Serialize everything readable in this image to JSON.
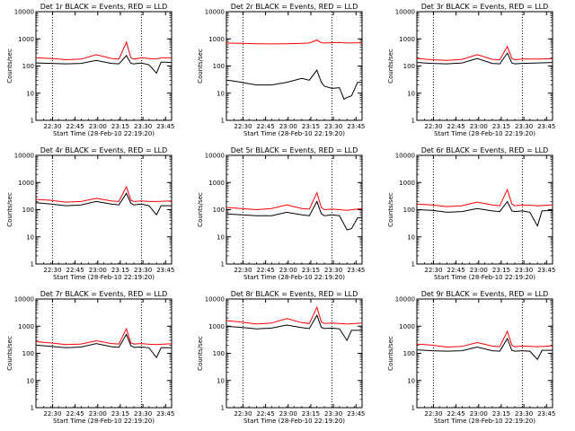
{
  "chart_data": {
    "type": "line",
    "x_tick_labels": [
      "22:30",
      "22:45",
      "23:00",
      "23:15",
      "23:30",
      "23:45"
    ],
    "y_tick_labels": [
      "1",
      "10",
      "100",
      "1000",
      "10000"
    ],
    "ylabel": "Counts/sec",
    "xlabel": "Start Time (28-Feb-10 22:19:20)",
    "y_scale": "log",
    "ylim": [
      1,
      10000
    ],
    "xlim_minutes_after_start": [
      0,
      90
    ],
    "series_colors": {
      "events": "#000000",
      "lld": "#ff0000"
    },
    "panels": [
      {
        "title": "Det 1r BLACK = Events, RED = LLD",
        "events": {
          "x": [
            0,
            10,
            20,
            30,
            40,
            50,
            55,
            60,
            63,
            65,
            70,
            75,
            80,
            83,
            90
          ],
          "y": [
            130,
            125,
            120,
            125,
            160,
            125,
            120,
            240,
            125,
            120,
            130,
            110,
            55,
            140,
            135
          ]
        },
        "lld": {
          "x": [
            0,
            10,
            20,
            30,
            40,
            50,
            55,
            60,
            63,
            65,
            70,
            75,
            80,
            83,
            90
          ],
          "y": [
            200,
            190,
            170,
            180,
            260,
            190,
            180,
            750,
            200,
            180,
            200,
            190,
            180,
            200,
            200
          ]
        }
      },
      {
        "title": "Det 2r BLACK = Events, RED = LLD",
        "events": {
          "x": [
            0,
            5,
            10,
            20,
            30,
            40,
            50,
            55,
            60,
            63,
            65,
            70,
            75,
            78,
            80,
            83,
            87,
            90
          ],
          "y": [
            30,
            28,
            25,
            20,
            20,
            25,
            35,
            30,
            70,
            25,
            18,
            15,
            16,
            6,
            7,
            8,
            25,
            25
          ]
        },
        "lld": {
          "x": [
            0,
            10,
            20,
            30,
            40,
            50,
            55,
            60,
            63,
            65,
            70,
            75,
            80,
            90
          ],
          "y": [
            700,
            680,
            660,
            650,
            660,
            680,
            700,
            900,
            720,
            700,
            720,
            740,
            700,
            720
          ]
        }
      },
      {
        "title": "Det 3r BLACK = Events, RED = LLD",
        "events": {
          "x": [
            0,
            10,
            20,
            30,
            40,
            50,
            55,
            60,
            63,
            65,
            70,
            80,
            90
          ],
          "y": [
            135,
            125,
            120,
            130,
            190,
            125,
            120,
            300,
            130,
            120,
            125,
            130,
            135
          ]
        },
        "lld": {
          "x": [
            0,
            10,
            20,
            30,
            40,
            50,
            55,
            60,
            63,
            65,
            70,
            80,
            90
          ],
          "y": [
            190,
            170,
            160,
            175,
            260,
            175,
            170,
            520,
            190,
            170,
            180,
            180,
            185
          ]
        }
      },
      {
        "title": "Det 4r BLACK = Events, RED = LLD",
        "events": {
          "x": [
            0,
            10,
            20,
            30,
            40,
            50,
            55,
            60,
            63,
            65,
            70,
            75,
            80,
            83,
            90
          ],
          "y": [
            180,
            160,
            140,
            150,
            200,
            160,
            150,
            400,
            170,
            150,
            160,
            140,
            65,
            140,
            140
          ]
        },
        "lld": {
          "x": [
            0,
            10,
            20,
            30,
            40,
            50,
            55,
            60,
            63,
            65,
            70,
            75,
            80,
            90
          ],
          "y": [
            240,
            220,
            190,
            200,
            260,
            210,
            200,
            700,
            220,
            200,
            210,
            200,
            200,
            210
          ]
        }
      },
      {
        "title": "Det 5r BLACK = Events, RED = LLD",
        "events": {
          "x": [
            0,
            10,
            20,
            30,
            40,
            50,
            55,
            60,
            63,
            65,
            70,
            75,
            80,
            83,
            87,
            90
          ],
          "y": [
            70,
            65,
            60,
            60,
            80,
            65,
            60,
            200,
            70,
            60,
            65,
            60,
            18,
            20,
            50,
            50
          ]
        },
        "lld": {
          "x": [
            0,
            10,
            20,
            30,
            40,
            50,
            55,
            60,
            63,
            65,
            70,
            75,
            80,
            90
          ],
          "y": [
            120,
            110,
            100,
            110,
            150,
            110,
            105,
            420,
            120,
            100,
            105,
            100,
            95,
            110
          ]
        }
      },
      {
        "title": "Det 6r BLACK = Events, RED = LLD",
        "events": {
          "x": [
            0,
            10,
            20,
            30,
            40,
            50,
            55,
            60,
            63,
            65,
            70,
            75,
            80,
            83,
            90
          ],
          "y": [
            100,
            95,
            80,
            85,
            110,
            90,
            85,
            200,
            90,
            85,
            90,
            80,
            25,
            90,
            95
          ]
        },
        "lld": {
          "x": [
            0,
            10,
            20,
            30,
            40,
            50,
            55,
            60,
            63,
            65,
            70,
            75,
            80,
            90
          ],
          "y": [
            160,
            150,
            130,
            140,
            190,
            150,
            140,
            550,
            160,
            140,
            150,
            145,
            140,
            150
          ]
        }
      },
      {
        "title": "Det 7r BLACK = Events, RED = LLD",
        "events": {
          "x": [
            0,
            10,
            20,
            30,
            40,
            50,
            55,
            60,
            63,
            65,
            70,
            75,
            80,
            83,
            90
          ],
          "y": [
            200,
            180,
            160,
            170,
            230,
            175,
            165,
            500,
            190,
            165,
            170,
            160,
            70,
            160,
            160
          ]
        },
        "lld": {
          "x": [
            0,
            10,
            20,
            30,
            40,
            50,
            55,
            60,
            63,
            65,
            70,
            75,
            80,
            90
          ],
          "y": [
            270,
            240,
            210,
            220,
            290,
            230,
            220,
            800,
            240,
            220,
            230,
            215,
            210,
            225
          ]
        }
      },
      {
        "title": "Det 8r BLACK = Events, RED = LLD",
        "events": {
          "x": [
            0,
            10,
            20,
            30,
            40,
            50,
            55,
            60,
            63,
            65,
            70,
            75,
            80,
            83,
            90
          ],
          "y": [
            1000,
            900,
            800,
            850,
            1100,
            880,
            820,
            2500,
            900,
            820,
            850,
            800,
            300,
            700,
            700
          ]
        },
        "lld": {
          "x": [
            0,
            10,
            20,
            30,
            40,
            50,
            55,
            60,
            63,
            65,
            70,
            75,
            80,
            90
          ],
          "y": [
            1600,
            1400,
            1200,
            1300,
            1900,
            1350,
            1250,
            5000,
            1400,
            1250,
            1300,
            1250,
            1200,
            1300
          ]
        }
      },
      {
        "title": "Det 9r BLACK = Events, RED = LLD",
        "events": {
          "x": [
            0,
            10,
            20,
            30,
            40,
            50,
            55,
            60,
            63,
            65,
            70,
            75,
            80,
            83,
            90
          ],
          "y": [
            135,
            125,
            120,
            125,
            170,
            125,
            120,
            350,
            130,
            120,
            125,
            120,
            60,
            130,
            130
          ]
        },
        "lld": {
          "x": [
            0,
            10,
            20,
            30,
            40,
            50,
            55,
            60,
            63,
            65,
            70,
            75,
            80,
            90
          ],
          "y": [
            220,
            200,
            170,
            180,
            250,
            185,
            175,
            650,
            200,
            175,
            185,
            180,
            175,
            190
          ]
        }
      }
    ]
  }
}
